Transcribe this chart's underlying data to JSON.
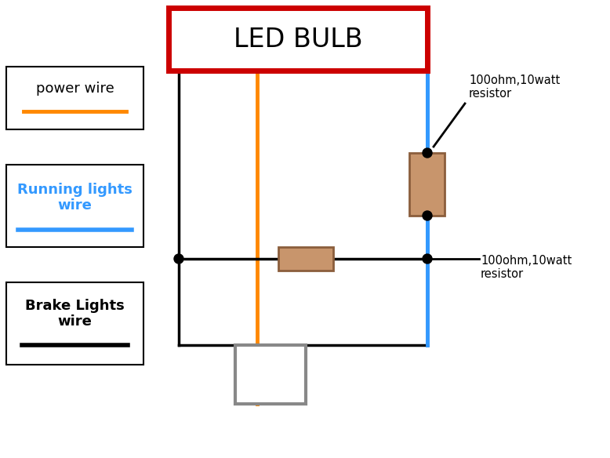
{
  "title": "LED BULB",
  "title_box_color": "#cc0000",
  "title_text_color": "#000000",
  "background_color": "#ffffff",
  "resistor_color": "#c8956c",
  "resistor_border": "#8B5E3C",
  "dot_color": "#000000",
  "orange_color": "#ff8800",
  "blue_color": "#3399ff",
  "gray_color": "#888888",
  "black_color": "#000000",
  "legend_items": [
    {
      "label": "power wire",
      "line_color": "#ff8800",
      "text_color": "#000000"
    },
    {
      "label": "Running lights\nwire",
      "line_color": "#3399ff",
      "text_color": "#1144cc"
    },
    {
      "label": "Brake Lights\nwire",
      "line_color": "#111111",
      "text_color": "#000000"
    }
  ],
  "annot1": "100ohm,10watt\nresistor",
  "annot2": "100ohm,10watt\nresistor"
}
